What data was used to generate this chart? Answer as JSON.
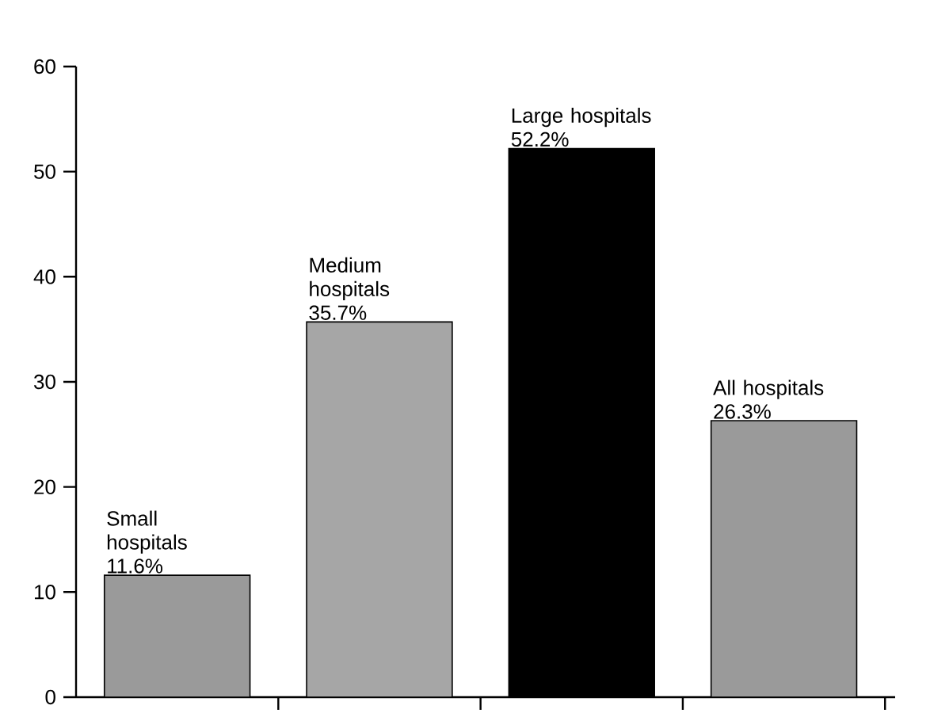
{
  "chart_data": {
    "type": "bar",
    "categories": [
      "Small hospitals",
      "Medium hospitals",
      "Large hospitals",
      "All hospitals"
    ],
    "values": [
      11.6,
      35.7,
      52.2,
      26.3
    ],
    "value_labels": [
      "11.6%",
      "35.7%",
      "52.2%",
      "26.3%"
    ],
    "colors": [
      "#9a9a9a",
      "#a6a6a6",
      "#000000",
      "#9a9a9a"
    ],
    "ylim": [
      0,
      60
    ],
    "yticks": [
      0,
      10,
      20,
      30,
      40,
      50,
      60
    ]
  }
}
